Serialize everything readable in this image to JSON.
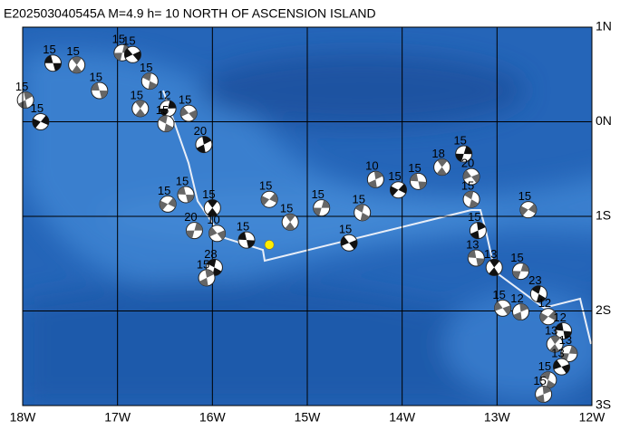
{
  "header": {
    "title": "E202503040545A M=4.9 h= 10 NORTH OF ASCENSION ISLAND"
  },
  "map": {
    "lonlim": [
      -18,
      -12
    ],
    "latlim": [
      -3,
      1
    ],
    "xticks": [
      {
        "value": -18,
        "label": "18W"
      },
      {
        "value": -17,
        "label": "17W"
      },
      {
        "value": -16,
        "label": "16W"
      },
      {
        "value": -15,
        "label": "15W"
      },
      {
        "value": -14,
        "label": "14W"
      },
      {
        "value": -13,
        "label": "13W"
      },
      {
        "value": -12,
        "label": "12W"
      }
    ],
    "yticks": [
      {
        "value": 1,
        "label": "1N"
      },
      {
        "value": 0,
        "label": "0N"
      },
      {
        "value": -1,
        "label": "1S"
      },
      {
        "value": -2,
        "label": "2S"
      },
      {
        "value": -3,
        "label": "3S"
      }
    ],
    "epicenter": {
      "lon": -15.4,
      "lat": -1.3,
      "color": "#ffee00"
    },
    "events": [
      {
        "lon": -17.68,
        "lat": 0.62,
        "depth": 15
      },
      {
        "lon": -17.43,
        "lat": 0.6,
        "depth": 15
      },
      {
        "lon": -16.95,
        "lat": 0.73,
        "depth": 15
      },
      {
        "lon": -16.84,
        "lat": 0.71,
        "depth": 15
      },
      {
        "lon": -16.66,
        "lat": 0.43,
        "depth": 15
      },
      {
        "lon": -17.97,
        "lat": 0.23,
        "depth": 15
      },
      {
        "lon": -17.81,
        "lat": 0.0,
        "depth": 15
      },
      {
        "lon": -17.19,
        "lat": 0.33,
        "depth": 15
      },
      {
        "lon": -16.76,
        "lat": 0.14,
        "depth": 15
      },
      {
        "lon": -16.47,
        "lat": 0.14,
        "depth": 12
      },
      {
        "lon": -16.25,
        "lat": 0.09,
        "depth": 15
      },
      {
        "lon": -16.49,
        "lat": -0.02,
        "depth": 15
      },
      {
        "lon": -16.09,
        "lat": -0.24,
        "depth": 20
      },
      {
        "lon": -16.47,
        "lat": -0.87,
        "depth": 15
      },
      {
        "lon": -16.28,
        "lat": -0.77,
        "depth": 15
      },
      {
        "lon": -16.0,
        "lat": -0.91,
        "depth": 15
      },
      {
        "lon": -16.19,
        "lat": -1.15,
        "depth": 20
      },
      {
        "lon": -15.95,
        "lat": -1.18,
        "depth": 10
      },
      {
        "lon": -15.98,
        "lat": -1.54,
        "depth": 28
      },
      {
        "lon": -16.06,
        "lat": -1.65,
        "depth": 15
      },
      {
        "lon": -15.4,
        "lat": -0.82,
        "depth": 15
      },
      {
        "lon": -15.64,
        "lat": -1.25,
        "depth": 15
      },
      {
        "lon": -15.18,
        "lat": -1.06,
        "depth": 15
      },
      {
        "lon": -14.85,
        "lat": -0.91,
        "depth": 15
      },
      {
        "lon": -14.56,
        "lat": -1.28,
        "depth": 15
      },
      {
        "lon": -14.42,
        "lat": -0.96,
        "depth": 15
      },
      {
        "lon": -14.28,
        "lat": -0.61,
        "depth": 10
      },
      {
        "lon": -14.04,
        "lat": -0.72,
        "depth": 15
      },
      {
        "lon": -13.83,
        "lat": -0.63,
        "depth": 15
      },
      {
        "lon": -13.58,
        "lat": -0.48,
        "depth": 18
      },
      {
        "lon": -13.35,
        "lat": -0.34,
        "depth": 15
      },
      {
        "lon": -13.27,
        "lat": -0.58,
        "depth": 20
      },
      {
        "lon": -13.27,
        "lat": -0.82,
        "depth": 15
      },
      {
        "lon": -13.2,
        "lat": -1.15,
        "depth": 15
      },
      {
        "lon": -12.67,
        "lat": -0.93,
        "depth": 15
      },
      {
        "lon": -13.22,
        "lat": -1.44,
        "depth": 13
      },
      {
        "lon": -13.03,
        "lat": -1.54,
        "depth": 13
      },
      {
        "lon": -12.75,
        "lat": -1.58,
        "depth": 15
      },
      {
        "lon": -12.94,
        "lat": -1.97,
        "depth": 15
      },
      {
        "lon": -12.56,
        "lat": -1.82,
        "depth": 23
      },
      {
        "lon": -12.75,
        "lat": -2.01,
        "depth": 12
      },
      {
        "lon": -12.46,
        "lat": -2.06,
        "depth": 12
      },
      {
        "lon": -12.3,
        "lat": -2.21,
        "depth": 12
      },
      {
        "lon": -12.39,
        "lat": -2.35,
        "depth": 13
      },
      {
        "lon": -12.24,
        "lat": -2.45,
        "depth": 13
      },
      {
        "lon": -12.32,
        "lat": -2.59,
        "depth": 13
      },
      {
        "lon": -12.46,
        "lat": -2.73,
        "depth": 15
      },
      {
        "lon": -12.51,
        "lat": -2.88,
        "depth": 15
      }
    ]
  }
}
